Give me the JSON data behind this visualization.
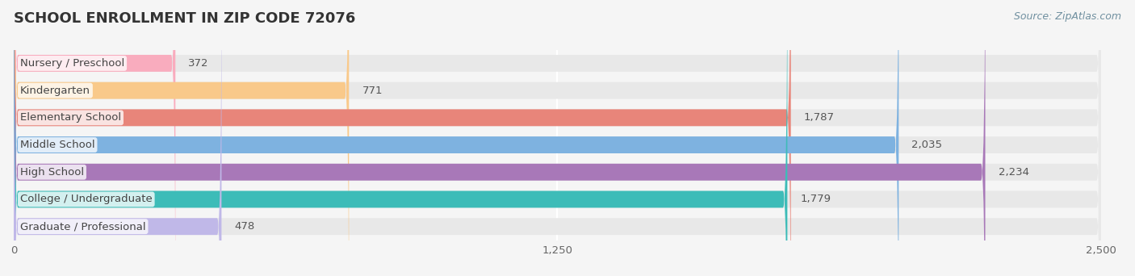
{
  "title": "SCHOOL ENROLLMENT IN ZIP CODE 72076",
  "source": "Source: ZipAtlas.com",
  "categories": [
    "Nursery / Preschool",
    "Kindergarten",
    "Elementary School",
    "Middle School",
    "High School",
    "College / Undergraduate",
    "Graduate / Professional"
  ],
  "values": [
    372,
    771,
    1787,
    2035,
    2234,
    1779,
    478
  ],
  "bar_colors": [
    "#F9ACBE",
    "#F9C98A",
    "#E8857A",
    "#7EB2E0",
    "#A878B8",
    "#3DBCB8",
    "#C0B8E8"
  ],
  "xlim": [
    0,
    2500
  ],
  "xticks": [
    0,
    1250,
    2500
  ],
  "background_color": "#f5f5f5",
  "bar_bg_color": "#e8e8e8",
  "title_fontsize": 13,
  "label_fontsize": 9.5,
  "value_fontsize": 9.5,
  "source_fontsize": 9
}
